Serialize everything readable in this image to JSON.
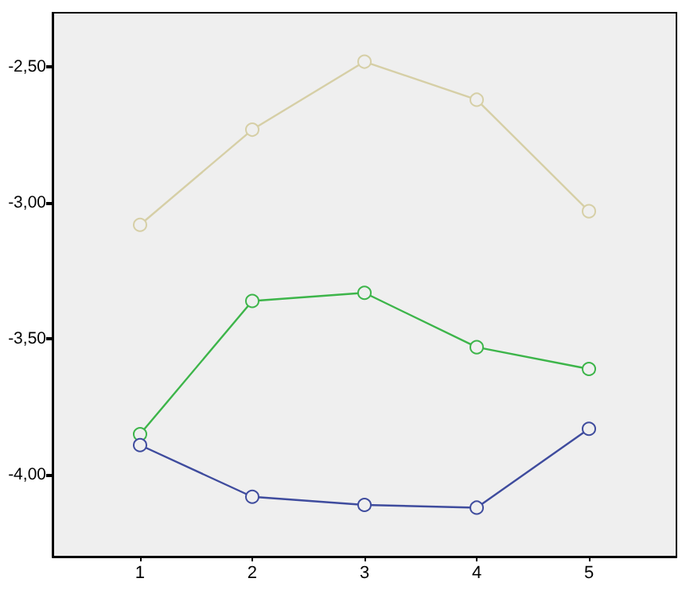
{
  "chart_data": {
    "type": "line",
    "x": [
      1,
      2,
      3,
      4,
      5
    ],
    "series": [
      {
        "color": "#d6cfa6",
        "values": [
          -3.08,
          -2.73,
          -2.48,
          -2.62,
          -3.03
        ]
      },
      {
        "color": "#3db54a",
        "values": [
          -3.85,
          -3.36,
          -3.33,
          -3.53,
          -3.61
        ]
      },
      {
        "color": "#3f4c9e",
        "values": [
          -3.89,
          -4.08,
          -4.11,
          -4.12,
          -3.83
        ]
      }
    ],
    "xlim": [
      0.22,
      5.78
    ],
    "xticks": [
      1,
      2,
      3,
      4,
      5
    ],
    "ylim": [
      -4.3,
      -2.3
    ],
    "yticks": [
      {
        "value": -4,
        "label": "-4,00"
      },
      {
        "value": -3.5,
        "label": "-3,50"
      },
      {
        "value": -3,
        "label": "-3,00"
      },
      {
        "value": -2.5,
        "label": "-2,50"
      }
    ],
    "grid": false,
    "marker": "circle",
    "line_style": "solid"
  }
}
